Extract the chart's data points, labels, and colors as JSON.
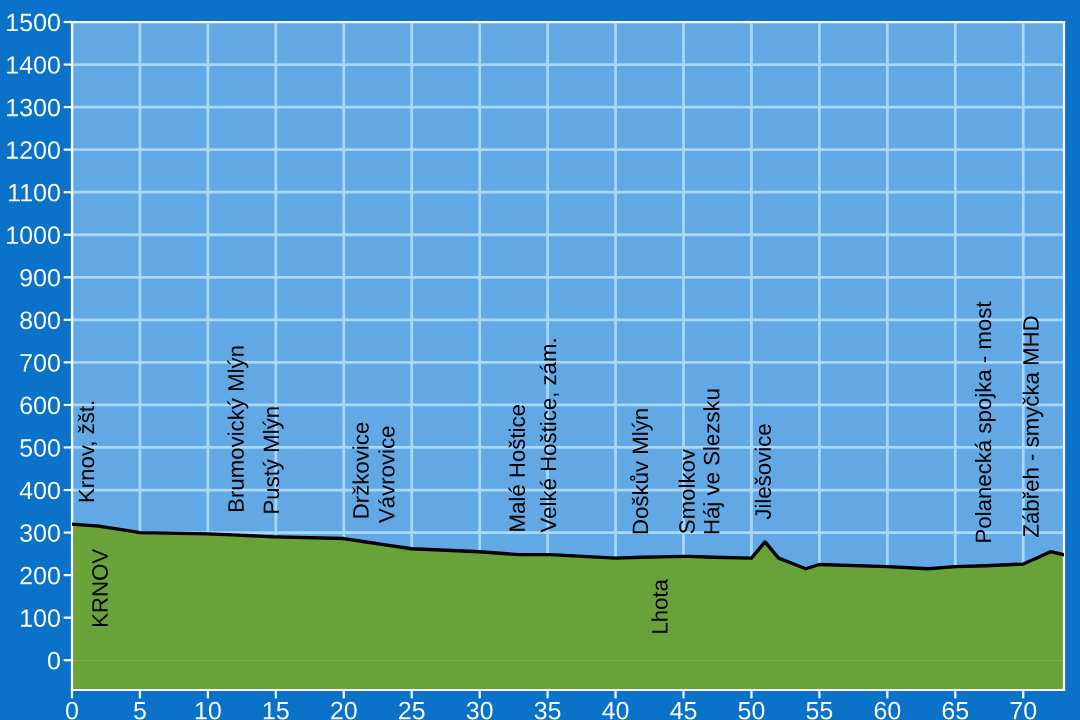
{
  "chart_data": {
    "type": "area",
    "x": [
      0,
      1.2,
      2,
      2.2,
      4,
      5,
      10,
      12.2,
      14.8,
      15,
      20,
      21.4,
      23.3,
      25,
      30,
      32.9,
      33,
      35,
      35.2,
      40,
      41.9,
      43.4,
      45,
      45.4,
      47.2,
      50,
      51,
      52,
      54,
      55,
      60,
      63,
      65,
      67.2,
      70,
      70.7,
      71,
      72,
      73
    ],
    "series": [
      {
        "color": "#6aa23a",
        "values": [
          320,
          317,
          315,
          314,
          305,
          300,
          297,
          294,
          290,
          290,
          286,
          279,
          270,
          262,
          255,
          248,
          248,
          248,
          248,
          240,
          242,
          243,
          244,
          244,
          242,
          240,
          278,
          240,
          215,
          225,
          220,
          215,
          220,
          222,
          226,
          236,
          240,
          255,
          248
        ]
      }
    ],
    "xlim": [
      0,
      73
    ],
    "ylim": [
      -70,
      1500
    ],
    "xticks": [
      0,
      5,
      10,
      15,
      20,
      25,
      30,
      35,
      40,
      45,
      50,
      55,
      60,
      65,
      70
    ],
    "yticks": [
      0,
      100,
      200,
      300,
      400,
      500,
      600,
      700,
      800,
      900,
      1000,
      1100,
      1200,
      1300,
      1400,
      1500
    ],
    "grid": true,
    "annotations": [
      {
        "text": "Krnov, žšt.",
        "x": 1.2,
        "y": 317
      },
      {
        "text": "KRNOV",
        "x": 2.2,
        "y": 314
      },
      {
        "text": "Brumovický Mlýn",
        "x": 12.2,
        "y": 294
      },
      {
        "text": "Pustý Mlýn",
        "x": 14.8,
        "y": 290
      },
      {
        "text": "Držkovice",
        "x": 21.4,
        "y": 279
      },
      {
        "text": "Vávrovice",
        "x": 23.3,
        "y": 270
      },
      {
        "text": "Malé Hoštice",
        "x": 32.9,
        "y": 248
      },
      {
        "text": "Velké Hoštice, zám.",
        "x": 35.2,
        "y": 248
      },
      {
        "text": "Doškův Mlýn",
        "x": 41.9,
        "y": 242
      },
      {
        "text": "Lhota",
        "x": 43.4,
        "y": 243
      },
      {
        "text": "Smolkov",
        "x": 45.4,
        "y": 244
      },
      {
        "text": "Háj ve Slezsku",
        "x": 47.2,
        "y": 242
      },
      {
        "text": "Jilešovice",
        "x": 51.0,
        "y": 278
      },
      {
        "text": "Polanecká spojka - most",
        "x": 67.2,
        "y": 222
      },
      {
        "text": "Zábřeh - smyčka MHD",
        "x": 70.7,
        "y": 236
      }
    ]
  }
}
